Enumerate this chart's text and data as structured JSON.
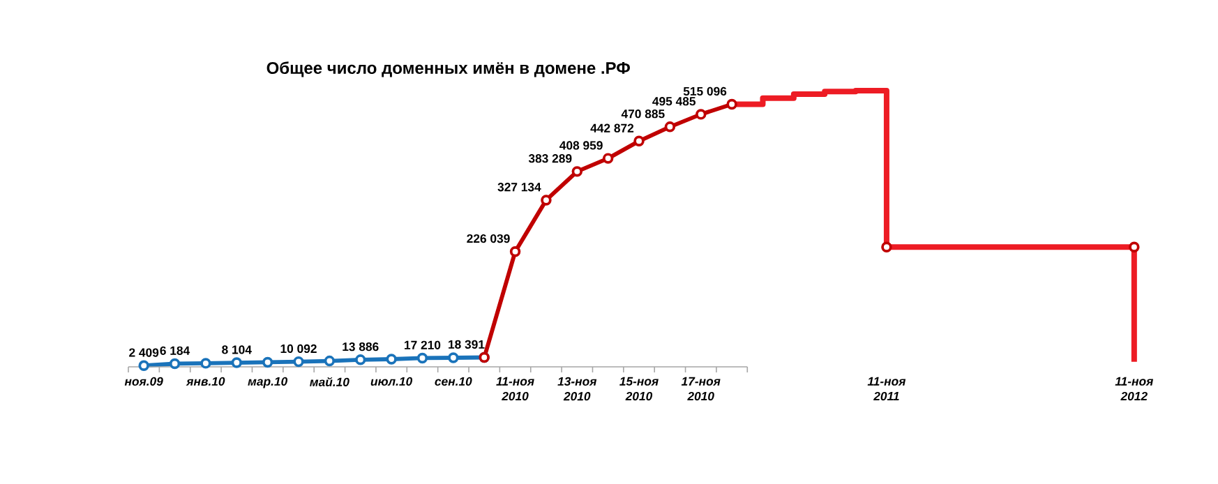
{
  "chart_data": {
    "type": "line",
    "title": "Общее число доменных имён в домене .РФ",
    "categories": [
      "ноя.09",
      null,
      "янв.10",
      null,
      "мар.10",
      null,
      "май.10",
      null,
      "июл.10",
      null,
      "сен.10",
      null,
      "11-ноя 2010",
      null,
      "13-ноя 2010",
      null,
      "15-ноя 2010",
      null,
      "17-ноя 2010",
      null,
      null,
      null,
      null,
      null,
      "11-ноя 2011",
      null,
      null,
      null,
      null,
      null,
      null,
      null,
      "11-ноя 2012"
    ],
    "series": [
      {
        "color": "#1a73ba",
        "marker": "circle",
        "values": [
          2409,
          6184,
          7000,
          8104,
          9000,
          10092,
          11500,
          13886,
          15000,
          17210,
          17800,
          18391,
          null,
          null,
          null,
          null,
          null,
          null,
          null,
          null,
          null,
          null,
          null,
          null,
          null,
          null,
          null,
          null,
          null,
          null,
          null,
          null,
          null
        ],
        "value_labels": [
          "2 409",
          "6 184",
          null,
          "8 104",
          null,
          "10 092",
          null,
          "13 886",
          null,
          "17 210",
          null,
          "18 391",
          null,
          null,
          null,
          null,
          null,
          null,
          null,
          null,
          null,
          null,
          null,
          null,
          null,
          null,
          null,
          null,
          null,
          null,
          null,
          null,
          null
        ]
      },
      {
        "color": "#c00000",
        "marker": "circle",
        "values": [
          null,
          null,
          null,
          null,
          null,
          null,
          null,
          null,
          null,
          null,
          null,
          18391,
          226039,
          327134,
          383289,
          408959,
          442872,
          470885,
          495485,
          515096,
          null,
          null,
          null,
          null,
          null,
          null,
          null,
          null,
          null,
          null,
          null,
          null,
          null
        ],
        "value_labels": [
          null,
          null,
          null,
          null,
          null,
          null,
          null,
          null,
          null,
          null,
          null,
          null,
          "226 039",
          "327 134",
          "383 289",
          "408 959",
          "442 872",
          "470 885",
          "495 485",
          "515 096",
          null,
          null,
          null,
          null,
          null,
          null,
          null,
          null,
          null,
          null,
          null,
          null,
          null
        ]
      },
      {
        "type": "step",
        "color": "#ed1c24",
        "marker": "none",
        "values": [
          null,
          null,
          null,
          null,
          null,
          null,
          null,
          null,
          null,
          null,
          null,
          null,
          null,
          null,
          null,
          null,
          null,
          null,
          null,
          515096,
          527000,
          535000,
          540000,
          542000,
          235000,
          235000,
          235000,
          235000,
          235000,
          235000,
          235000,
          235000,
          10000
        ]
      },
      {
        "type": "scatter",
        "color": "#c00000",
        "marker": "circle",
        "x": [
          "11-ноя 2011",
          "11-ноя 2012"
        ],
        "values": [
          235000,
          235000
        ]
      }
    ],
    "legend": false,
    "grid": false,
    "line_style": "solid"
  }
}
